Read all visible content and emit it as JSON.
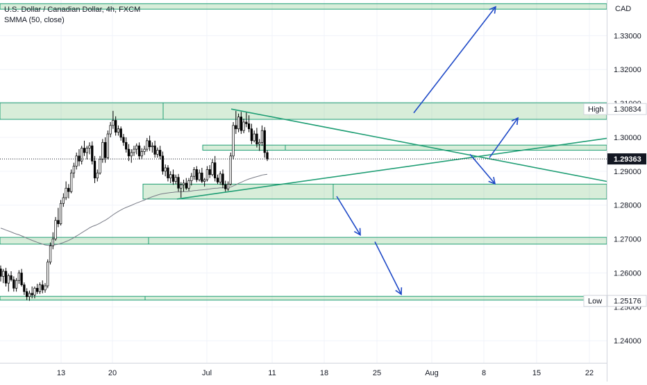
{
  "chart_data": {
    "type": "candlestick",
    "title": "U.S. Dollar / Canadian Dollar, 4h, FXCM",
    "indicator": "SMMA (50, close)",
    "currency": "CAD",
    "ylim": [
      1.2335,
      1.3405
    ],
    "y_ticks": [
      "1.24000",
      "1.25000",
      "1.26000",
      "1.27000",
      "1.28000",
      "1.29000",
      "1.30000",
      "1.31000",
      "1.32000",
      "1.33000"
    ],
    "x_ticks": [
      "13",
      "20",
      "Jul",
      "11",
      "18",
      "25",
      "Aug",
      "8",
      "15",
      "22"
    ],
    "last_price": "1.29363",
    "high": {
      "label": "High",
      "value": "1.30834"
    },
    "low": {
      "label": "Low",
      "value": "1.25176"
    },
    "candles": [
      [
        1.2612,
        1.2622,
        1.2575,
        1.259
      ],
      [
        1.259,
        1.2612,
        1.257,
        1.2605
      ],
      [
        1.2605,
        1.2615,
        1.256,
        1.257
      ],
      [
        1.257,
        1.2598,
        1.2545,
        1.2592
      ],
      [
        1.2592,
        1.2605,
        1.2575,
        1.258
      ],
      [
        1.258,
        1.259,
        1.2545,
        1.2555
      ],
      [
        1.2555,
        1.2585,
        1.2545,
        1.2578
      ],
      [
        1.2578,
        1.2608,
        1.2568,
        1.26
      ],
      [
        1.26,
        1.2612,
        1.256,
        1.2565
      ],
      [
        1.2565,
        1.2572,
        1.2535,
        1.2545
      ],
      [
        1.2545,
        1.2555,
        1.252,
        1.253
      ],
      [
        1.253,
        1.2548,
        1.2518,
        1.254
      ],
      [
        1.254,
        1.256,
        1.2525,
        1.2535
      ],
      [
        1.2535,
        1.256,
        1.2525,
        1.2555
      ],
      [
        1.2555,
        1.2568,
        1.2538,
        1.2545
      ],
      [
        1.2545,
        1.2572,
        1.2538,
        1.2565
      ],
      [
        1.2565,
        1.2578,
        1.254,
        1.255
      ],
      [
        1.255,
        1.257,
        1.2542,
        1.2562
      ],
      [
        1.2562,
        1.264,
        1.2555,
        1.2632
      ],
      [
        1.2632,
        1.269,
        1.2625,
        1.268
      ],
      [
        1.268,
        1.272,
        1.267,
        1.27
      ],
      [
        1.27,
        1.2765,
        1.2695,
        1.2755
      ],
      [
        1.2755,
        1.2792,
        1.2735,
        1.2745
      ],
      [
        1.2745,
        1.2815,
        1.274,
        1.2805
      ],
      [
        1.2805,
        1.2835,
        1.2795,
        1.2822
      ],
      [
        1.2822,
        1.287,
        1.2815,
        1.285
      ],
      [
        1.285,
        1.2862,
        1.282,
        1.284
      ],
      [
        1.284,
        1.2905,
        1.2835,
        1.2895
      ],
      [
        1.2895,
        1.2925,
        1.288,
        1.2915
      ],
      [
        1.2915,
        1.2955,
        1.2905,
        1.2945
      ],
      [
        1.2945,
        1.2965,
        1.2915,
        1.293
      ],
      [
        1.293,
        1.2975,
        1.292,
        1.2968
      ],
      [
        1.2968,
        1.299,
        1.2945,
        1.2955
      ],
      [
        1.2955,
        1.2975,
        1.2935,
        1.2968
      ],
      [
        1.2968,
        1.2985,
        1.295,
        1.2975
      ],
      [
        1.2975,
        1.2988,
        1.292,
        1.293
      ],
      [
        1.293,
        1.2945,
        1.2865,
        1.288
      ],
      [
        1.288,
        1.2905,
        1.287,
        1.2895
      ],
      [
        1.2895,
        1.2945,
        1.289,
        1.2935
      ],
      [
        1.2935,
        1.2995,
        1.2925,
        1.2985
      ],
      [
        1.2985,
        1.3,
        1.2925,
        1.294
      ],
      [
        1.294,
        1.302,
        1.2935,
        1.301
      ],
      [
        1.301,
        1.3045,
        1.3,
        1.3035
      ],
      [
        1.3035,
        1.3078,
        1.3025,
        1.305
      ],
      [
        1.305,
        1.3062,
        1.3005,
        1.3015
      ],
      [
        1.3015,
        1.3035,
        1.3005,
        1.3025
      ],
      [
        1.3025,
        1.3032,
        1.299,
        1.3
      ],
      [
        1.3,
        1.301,
        1.2975,
        1.2985
      ],
      [
        1.2985,
        1.3,
        1.2955,
        1.2965
      ],
      [
        1.2965,
        1.298,
        1.293,
        1.2945
      ],
      [
        1.2945,
        1.2965,
        1.2925,
        1.2955
      ],
      [
        1.2955,
        1.2975,
        1.2945,
        1.2965
      ],
      [
        1.2965,
        1.2982,
        1.295,
        1.2975
      ],
      [
        1.2975,
        1.2985,
        1.2935,
        1.2945
      ],
      [
        1.2945,
        1.2968,
        1.2935,
        1.2958
      ],
      [
        1.2958,
        1.2975,
        1.2948,
        1.2965
      ],
      [
        1.2965,
        1.2998,
        1.2958,
        1.299
      ],
      [
        1.299,
        1.3005,
        1.296,
        1.2972
      ],
      [
        1.2972,
        1.2985,
        1.2955,
        1.2975
      ],
      [
        1.2975,
        1.299,
        1.294,
        1.295
      ],
      [
        1.295,
        1.297,
        1.294,
        1.2962
      ],
      [
        1.2962,
        1.2975,
        1.2935,
        1.2945
      ],
      [
        1.2945,
        1.2958,
        1.289,
        1.29
      ],
      [
        1.29,
        1.292,
        1.2885,
        1.291
      ],
      [
        1.291,
        1.2918,
        1.287,
        1.288
      ],
      [
        1.288,
        1.29,
        1.2865,
        1.289
      ],
      [
        1.289,
        1.2905,
        1.286,
        1.287
      ],
      [
        1.287,
        1.289,
        1.2862,
        1.2882
      ],
      [
        1.2882,
        1.2892,
        1.284,
        1.285
      ],
      [
        1.285,
        1.2868,
        1.2822,
        1.286
      ],
      [
        1.286,
        1.2875,
        1.284,
        1.2865
      ],
      [
        1.2865,
        1.288,
        1.2845,
        1.285
      ],
      [
        1.285,
        1.288,
        1.2842,
        1.2872
      ],
      [
        1.2872,
        1.2895,
        1.2858,
        1.2885
      ],
      [
        1.2885,
        1.2912,
        1.2875,
        1.2905
      ],
      [
        1.2905,
        1.2915,
        1.2868,
        1.2875
      ],
      [
        1.2875,
        1.2905,
        1.287,
        1.2895
      ],
      [
        1.2895,
        1.291,
        1.2865,
        1.287
      ],
      [
        1.287,
        1.288,
        1.2855,
        1.2875
      ],
      [
        1.2875,
        1.2915,
        1.287,
        1.2905
      ],
      [
        1.2905,
        1.2918,
        1.288,
        1.289
      ],
      [
        1.289,
        1.2935,
        1.2885,
        1.2925
      ],
      [
        1.2925,
        1.2945,
        1.287,
        1.288
      ],
      [
        1.288,
        1.289,
        1.2862,
        1.2868
      ],
      [
        1.2868,
        1.29,
        1.286,
        1.2892
      ],
      [
        1.2892,
        1.2905,
        1.285,
        1.286
      ],
      [
        1.286,
        1.2872,
        1.284,
        1.2848
      ],
      [
        1.2848,
        1.287,
        1.2842,
        1.2862
      ],
      [
        1.2862,
        1.2955,
        1.2858,
        1.2945
      ],
      [
        1.2945,
        1.3045,
        1.2935,
        1.3035
      ],
      [
        1.3035,
        1.3078,
        1.301,
        1.3025
      ],
      [
        1.3025,
        1.307,
        1.3015,
        1.306
      ],
      [
        1.306,
        1.3075,
        1.301,
        1.302
      ],
      [
        1.302,
        1.3055,
        1.3012,
        1.3045
      ],
      [
        1.3045,
        1.3075,
        1.303,
        1.304
      ],
      [
        1.304,
        1.3065,
        1.3015,
        1.3025
      ],
      [
        1.3025,
        1.304,
        1.298,
        1.299
      ],
      [
        1.299,
        1.302,
        1.2985,
        1.301
      ],
      [
        1.301,
        1.3028,
        1.297,
        1.298
      ],
      [
        1.298,
        1.2995,
        1.296,
        1.2985
      ],
      [
        1.2985,
        1.3035,
        1.2975,
        1.302
      ],
      [
        1.302,
        1.303,
        1.294,
        1.2955
      ],
      [
        1.2955,
        1.2962,
        1.293,
        1.2936
      ]
    ],
    "smma_start": 1.2735,
    "zones": [
      {
        "price_top": 1.3394,
        "price_bottom": 1.3378
      },
      {
        "price_top": 1.3102,
        "price_bottom": 1.3053
      },
      {
        "price_top": 1.2977,
        "price_bottom": 1.2962
      },
      {
        "price_top": 1.2862,
        "price_bottom": 1.2818
      },
      {
        "price_top": 1.2705,
        "price_bottom": 1.2685
      },
      {
        "price_top": 1.2531,
        "price_bottom": 1.252
      }
    ],
    "trendlines": [
      {
        "price_start": 1.30834,
        "price_end": 1.287
      },
      {
        "price_start": 1.2818,
        "price_end": 1.2997
      }
    ],
    "arrows": [
      {
        "price_from": 1.3072,
        "price_to": 1.3385
      },
      {
        "price_from": 1.294,
        "price_to": 1.3057
      },
      {
        "price_from": 1.295,
        "price_to": 1.2863
      },
      {
        "price_from": 1.2826,
        "price_to": 1.2712
      },
      {
        "price_from": 1.2692,
        "price_to": 1.2537
      }
    ]
  }
}
